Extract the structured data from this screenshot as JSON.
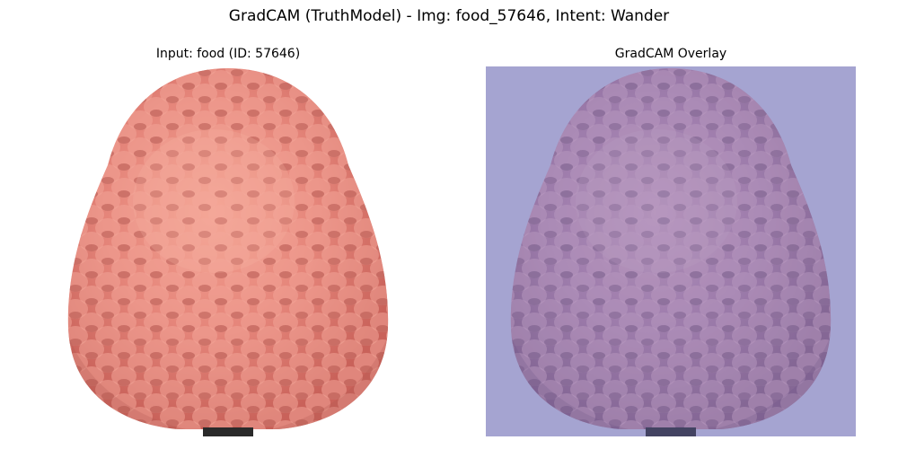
{
  "figure": {
    "suptitle": "GradCAM (TruthModel) - Img: food_57646, Intent: Wander"
  },
  "panels": [
    {
      "title": "Input: food (ID: 57646)",
      "content": "pink pineapple-like fruit on white background"
    },
    {
      "title": "GradCAM Overlay",
      "content": "same fruit with uniform blue-violet heatmap tint"
    }
  ],
  "colors": {
    "fruit_base": "#e9857a",
    "fruit_shadow": "#c65f58",
    "fruit_highlight": "#f6a79b",
    "background": "#ffffff",
    "overlay_bg": "#a9a8d3",
    "overlay_tint": "#8a8cc8"
  }
}
